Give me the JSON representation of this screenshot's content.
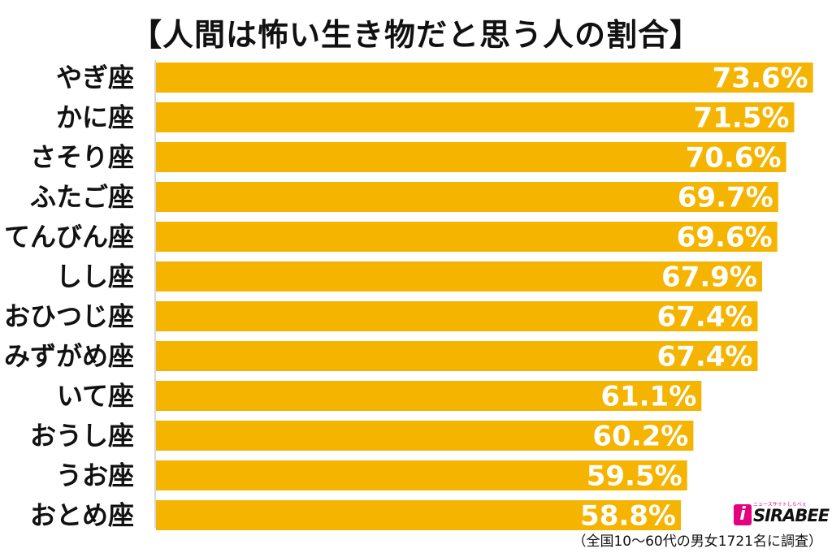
{
  "chart_data": {
    "type": "bar",
    "orientation": "horizontal",
    "title": "【人間は怖い生き物だと思う人の割合】",
    "categories": [
      "やぎ座",
      "かに座",
      "さそり座",
      "ふたご座",
      "てんびん座",
      "しし座",
      "おひつじ座",
      "みずがめ座",
      "いて座",
      "おうし座",
      "うお座",
      "おとめ座"
    ],
    "values": [
      73.6,
      71.5,
      70.6,
      69.7,
      69.6,
      67.9,
      67.4,
      67.4,
      61.1,
      60.2,
      59.5,
      58.8
    ],
    "value_labels": [
      "73.6%",
      "71.5%",
      "70.6%",
      "69.7%",
      "69.6%",
      "67.9%",
      "67.4%",
      "67.4%",
      "61.1%",
      "60.2%",
      "59.5%",
      "58.8%"
    ],
    "unit": "%",
    "xlim": [
      0,
      74
    ],
    "grid": false,
    "legend": "none",
    "bar_color": "#f5b400",
    "label_color": "#ffffff"
  },
  "logo": {
    "icon": "sirabee-logo-icon",
    "tagline": "ニュースサイトしらべぇ",
    "text": "SIRABEE",
    "color": "#e4007f"
  },
  "footnote": "（全国10〜60代の男女1721名に調査）"
}
